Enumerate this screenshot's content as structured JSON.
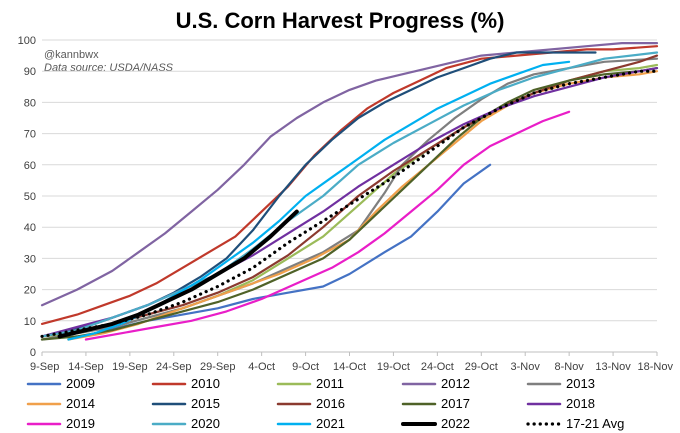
{
  "chart_data": {
    "type": "line",
    "title": "U.S. Corn Harvest Progress (%)",
    "annotation_handle": "@kannbwx",
    "annotation_source": "Data source: USDA/NASS",
    "xlabel": "",
    "ylabel": "",
    "ylim": [
      0,
      100
    ],
    "yticks": [
      0,
      10,
      20,
      30,
      40,
      50,
      60,
      70,
      80,
      90,
      100
    ],
    "x_unit": "days since 9-Sep",
    "xlim": [
      0,
      70
    ],
    "xticks": [
      {
        "label": "9-Sep",
        "day": 0
      },
      {
        "label": "14-Sep",
        "day": 5
      },
      {
        "label": "19-Sep",
        "day": 10
      },
      {
        "label": "24-Sep",
        "day": 15
      },
      {
        "label": "29-Sep",
        "day": 20
      },
      {
        "label": "4-Oct",
        "day": 25
      },
      {
        "label": "9-Oct",
        "day": 30
      },
      {
        "label": "14-Oct",
        "day": 35
      },
      {
        "label": "19-Oct",
        "day": 40
      },
      {
        "label": "24-Oct",
        "day": 45
      },
      {
        "label": "29-Oct",
        "day": 50
      },
      {
        "label": "3-Nov",
        "day": 55
      },
      {
        "label": "8-Nov",
        "day": 60
      },
      {
        "label": "13-Nov",
        "day": 65
      },
      {
        "label": "18-Nov",
        "day": 70
      }
    ],
    "grid": true,
    "legend_position": "bottom",
    "series": [
      {
        "name": "2009",
        "color": "#4472C4",
        "width": 2.2,
        "points": [
          [
            6,
            6
          ],
          [
            9,
            8
          ],
          [
            12,
            10
          ],
          [
            16,
            12
          ],
          [
            20,
            14
          ],
          [
            24,
            17
          ],
          [
            28,
            19
          ],
          [
            32,
            21
          ],
          [
            35,
            25
          ],
          [
            39,
            32
          ],
          [
            42,
            37
          ],
          [
            45,
            45
          ],
          [
            48,
            54
          ],
          [
            51,
            60
          ]
        ]
      },
      {
        "name": "2010",
        "color": "#C0392B",
        "width": 2.2,
        "points": [
          [
            0,
            9
          ],
          [
            4,
            12
          ],
          [
            7,
            15
          ],
          [
            10,
            18
          ],
          [
            13,
            22
          ],
          [
            16,
            27
          ],
          [
            19,
            32
          ],
          [
            22,
            37
          ],
          [
            25,
            45
          ],
          [
            28,
            53
          ],
          [
            31,
            63
          ],
          [
            34,
            71
          ],
          [
            37,
            78
          ],
          [
            40,
            83
          ],
          [
            43,
            87
          ],
          [
            46,
            91
          ],
          [
            50,
            94
          ],
          [
            54,
            95
          ],
          [
            58,
            96
          ],
          [
            62,
            97
          ],
          [
            65,
            97
          ],
          [
            70,
            98
          ]
        ]
      },
      {
        "name": "2011",
        "color": "#9BBB59",
        "width": 2.2,
        "points": [
          [
            0,
            5
          ],
          [
            4,
            6
          ],
          [
            8,
            8
          ],
          [
            12,
            11
          ],
          [
            16,
            14
          ],
          [
            20,
            18
          ],
          [
            24,
            23
          ],
          [
            28,
            30
          ],
          [
            32,
            37
          ],
          [
            36,
            47
          ],
          [
            40,
            57
          ],
          [
            44,
            65
          ],
          [
            48,
            72
          ],
          [
            52,
            78
          ],
          [
            56,
            83
          ],
          [
            60,
            87
          ],
          [
            64,
            90
          ],
          [
            68,
            91
          ],
          [
            70,
            92
          ]
        ]
      },
      {
        "name": "2012",
        "color": "#8064A2",
        "width": 2.2,
        "points": [
          [
            0,
            15
          ],
          [
            4,
            20
          ],
          [
            8,
            26
          ],
          [
            11,
            32
          ],
          [
            14,
            38
          ],
          [
            17,
            45
          ],
          [
            20,
            52
          ],
          [
            23,
            60
          ],
          [
            26,
            69
          ],
          [
            29,
            75
          ],
          [
            32,
            80
          ],
          [
            35,
            84
          ],
          [
            38,
            87
          ],
          [
            41,
            89
          ],
          [
            44,
            91
          ],
          [
            47,
            93
          ],
          [
            50,
            95
          ],
          [
            54,
            96
          ],
          [
            58,
            97
          ],
          [
            62,
            98
          ],
          [
            66,
            99
          ],
          [
            70,
            99
          ]
        ]
      },
      {
        "name": "2013",
        "color": "#7F7F7F",
        "width": 2.2,
        "points": [
          [
            0,
            4
          ],
          [
            4,
            6
          ],
          [
            8,
            8
          ],
          [
            12,
            11
          ],
          [
            16,
            14
          ],
          [
            20,
            18
          ],
          [
            24,
            22
          ],
          [
            28,
            27
          ],
          [
            32,
            32
          ],
          [
            36,
            39
          ],
          [
            39,
            51
          ],
          [
            41,
            60
          ],
          [
            44,
            68
          ],
          [
            47,
            75
          ],
          [
            50,
            81
          ],
          [
            53,
            86
          ],
          [
            56,
            89
          ],
          [
            60,
            91
          ],
          [
            64,
            93
          ],
          [
            70,
            94
          ]
        ]
      },
      {
        "name": "2014",
        "color": "#F0A04B",
        "width": 2.2,
        "points": [
          [
            3,
            4
          ],
          [
            7,
            6
          ],
          [
            11,
            9
          ],
          [
            15,
            13
          ],
          [
            19,
            17
          ],
          [
            23,
            21
          ],
          [
            27,
            25
          ],
          [
            31,
            30
          ],
          [
            35,
            36
          ],
          [
            38,
            45
          ],
          [
            41,
            53
          ],
          [
            44,
            60
          ],
          [
            47,
            67
          ],
          [
            50,
            74
          ],
          [
            53,
            79
          ],
          [
            56,
            83
          ],
          [
            60,
            86
          ],
          [
            64,
            88
          ],
          [
            68,
            89
          ],
          [
            70,
            90
          ]
        ]
      },
      {
        "name": "2015",
        "color": "#1F4E79",
        "width": 2.2,
        "points": [
          [
            0,
            5
          ],
          [
            3,
            7
          ],
          [
            6,
            9
          ],
          [
            9,
            12
          ],
          [
            12,
            15
          ],
          [
            15,
            19
          ],
          [
            18,
            24
          ],
          [
            21,
            30
          ],
          [
            24,
            39
          ],
          [
            27,
            50
          ],
          [
            30,
            60
          ],
          [
            33,
            68
          ],
          [
            36,
            75
          ],
          [
            39,
            80
          ],
          [
            42,
            84
          ],
          [
            45,
            88
          ],
          [
            48,
            91
          ],
          [
            51,
            94
          ],
          [
            54,
            96
          ],
          [
            57,
            96
          ],
          [
            60,
            96
          ],
          [
            63,
            96
          ]
        ]
      },
      {
        "name": "2016",
        "color": "#8B3A2F",
        "width": 2.2,
        "points": [
          [
            0,
            5
          ],
          [
            4,
            7
          ],
          [
            8,
            9
          ],
          [
            12,
            12
          ],
          [
            16,
            15
          ],
          [
            20,
            19
          ],
          [
            24,
            24
          ],
          [
            28,
            31
          ],
          [
            32,
            40
          ],
          [
            36,
            50
          ],
          [
            40,
            58
          ],
          [
            44,
            65
          ],
          [
            48,
            72
          ],
          [
            52,
            78
          ],
          [
            56,
            83
          ],
          [
            60,
            87
          ],
          [
            64,
            90
          ],
          [
            68,
            93
          ],
          [
            70,
            95
          ]
        ]
      },
      {
        "name": "2017",
        "color": "#4F6228",
        "width": 2.2,
        "points": [
          [
            0,
            4
          ],
          [
            4,
            5
          ],
          [
            8,
            7
          ],
          [
            12,
            10
          ],
          [
            16,
            13
          ],
          [
            20,
            16
          ],
          [
            24,
            20
          ],
          [
            28,
            25
          ],
          [
            32,
            30
          ],
          [
            35,
            36
          ],
          [
            38,
            44
          ],
          [
            41,
            52
          ],
          [
            44,
            60
          ],
          [
            47,
            68
          ],
          [
            50,
            75
          ],
          [
            53,
            80
          ],
          [
            56,
            84
          ],
          [
            60,
            87
          ],
          [
            64,
            89
          ],
          [
            68,
            90
          ],
          [
            70,
            91
          ]
        ]
      },
      {
        "name": "2018",
        "color": "#7030A0",
        "width": 2.2,
        "points": [
          [
            0,
            5
          ],
          [
            4,
            8
          ],
          [
            8,
            11
          ],
          [
            12,
            15
          ],
          [
            16,
            20
          ],
          [
            20,
            25
          ],
          [
            24,
            31
          ],
          [
            28,
            38
          ],
          [
            32,
            45
          ],
          [
            36,
            53
          ],
          [
            40,
            60
          ],
          [
            44,
            67
          ],
          [
            48,
            73
          ],
          [
            52,
            78
          ],
          [
            56,
            82
          ],
          [
            60,
            85
          ],
          [
            64,
            88
          ],
          [
            68,
            90
          ],
          [
            70,
            91
          ]
        ]
      },
      {
        "name": "2019",
        "color": "#E91EC8",
        "width": 2.2,
        "points": [
          [
            5,
            4
          ],
          [
            9,
            6
          ],
          [
            13,
            8
          ],
          [
            17,
            10
          ],
          [
            21,
            13
          ],
          [
            25,
            17
          ],
          [
            29,
            22
          ],
          [
            33,
            27
          ],
          [
            36,
            32
          ],
          [
            39,
            38
          ],
          [
            42,
            45
          ],
          [
            45,
            52
          ],
          [
            48,
            60
          ],
          [
            51,
            66
          ],
          [
            54,
            70
          ],
          [
            57,
            74
          ],
          [
            60,
            77
          ]
        ]
      },
      {
        "name": "2020",
        "color": "#4BACC6",
        "width": 2.2,
        "points": [
          [
            0,
            5
          ],
          [
            4,
            7
          ],
          [
            8,
            11
          ],
          [
            12,
            15
          ],
          [
            16,
            20
          ],
          [
            20,
            25
          ],
          [
            24,
            33
          ],
          [
            28,
            42
          ],
          [
            32,
            50
          ],
          [
            36,
            60
          ],
          [
            40,
            67
          ],
          [
            44,
            73
          ],
          [
            48,
            79
          ],
          [
            52,
            84
          ],
          [
            56,
            88
          ],
          [
            60,
            91
          ],
          [
            64,
            94
          ],
          [
            70,
            96
          ]
        ]
      },
      {
        "name": "2021",
        "color": "#00B0F0",
        "width": 2.2,
        "points": [
          [
            3,
            4
          ],
          [
            6,
            6
          ],
          [
            9,
            9
          ],
          [
            12,
            13
          ],
          [
            15,
            18
          ],
          [
            18,
            23
          ],
          [
            21,
            29
          ],
          [
            24,
            35
          ],
          [
            27,
            42
          ],
          [
            30,
            50
          ],
          [
            33,
            56
          ],
          [
            36,
            62
          ],
          [
            39,
            68
          ],
          [
            42,
            73
          ],
          [
            45,
            78
          ],
          [
            48,
            82
          ],
          [
            51,
            86
          ],
          [
            54,
            89
          ],
          [
            57,
            92
          ],
          [
            60,
            93
          ]
        ]
      },
      {
        "name": "2022",
        "color": "#000000",
        "width": 4,
        "points": [
          [
            2,
            5
          ],
          [
            5,
            7
          ],
          [
            8,
            9
          ],
          [
            11,
            12
          ],
          [
            14,
            16
          ],
          [
            17,
            20
          ],
          [
            20,
            25
          ],
          [
            23,
            30
          ],
          [
            26,
            37
          ],
          [
            29,
            45
          ]
        ]
      },
      {
        "name": "17-21 Avg",
        "color": "#000000",
        "width": 3.2,
        "dotted": true,
        "points": [
          [
            0,
            5
          ],
          [
            4,
            7
          ],
          [
            8,
            9
          ],
          [
            12,
            12
          ],
          [
            16,
            16
          ],
          [
            20,
            21
          ],
          [
            24,
            27
          ],
          [
            28,
            35
          ],
          [
            32,
            42
          ],
          [
            36,
            49
          ],
          [
            40,
            56
          ],
          [
            44,
            64
          ],
          [
            48,
            72
          ],
          [
            52,
            78
          ],
          [
            56,
            83
          ],
          [
            60,
            86
          ],
          [
            64,
            88
          ],
          [
            68,
            90
          ],
          [
            70,
            90
          ]
        ]
      }
    ]
  }
}
